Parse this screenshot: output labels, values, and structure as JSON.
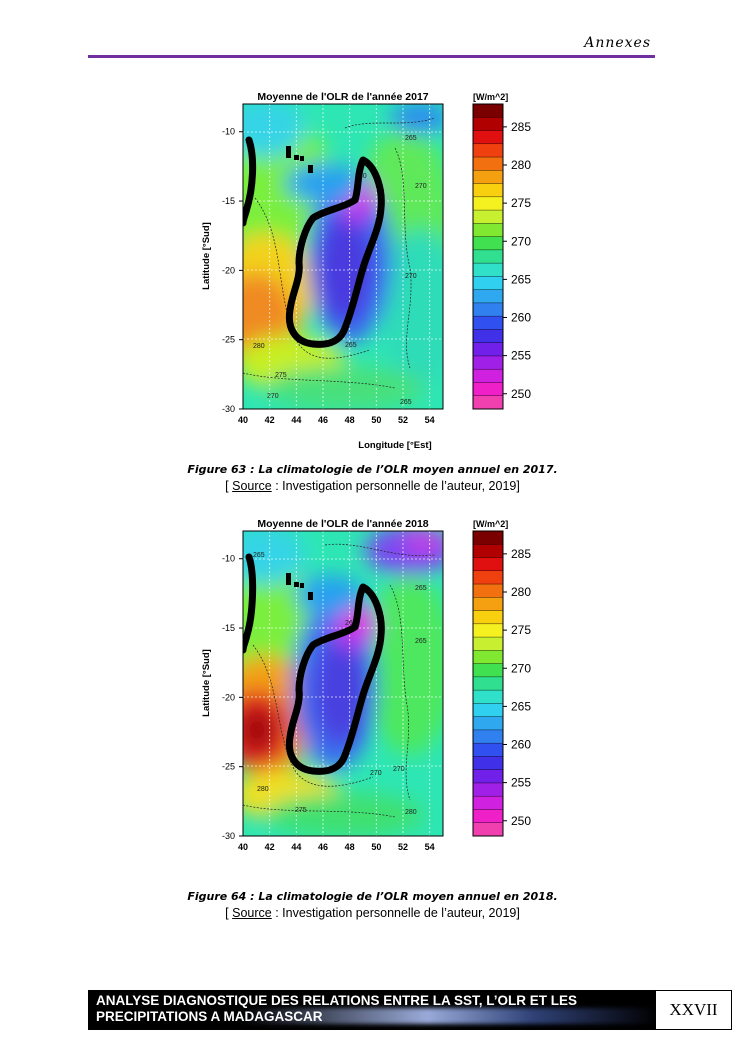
{
  "header": {
    "title": "Annexes"
  },
  "figures": [
    {
      "panel_title": "Moyenne de l'OLR de l'année 2017",
      "unit": "[W/m^2]",
      "ylabel": "Latitude [°Sud]",
      "xlabel": "Longitude [°Est]",
      "caption": "Figure 63 : La climatologie de l’OLR moyen annuel en 2017.",
      "source_label": "Source",
      "source_text": " : Investigation personnelle de l’auteur, 2019]",
      "source_open": "[ ",
      "contour_labels": [
        "265",
        "270",
        "270",
        "260",
        "280",
        "265",
        "275",
        "270",
        "265"
      ]
    },
    {
      "panel_title": "Moyenne de l'OLR de l'année 2018",
      "unit": "[W/m^2]",
      "ylabel": "Latitude [°Sud]",
      "xlabel": "",
      "caption": "Figure 64 : La climatologie de l’OLR moyen annuel en 2018.",
      "source_label": "Source",
      "source_text": " : Investigation personnelle de l’auteur, 2019]",
      "source_open": "[ ",
      "contour_labels": [
        "265",
        "260",
        "265",
        "265",
        "270",
        "270",
        "280",
        "275",
        "280"
      ]
    }
  ],
  "chart_data": [
    {
      "type": "heatmap",
      "title": "Moyenne de l'OLR de l'année 2017",
      "xlabel": "Longitude [°Est]",
      "ylabel": "Latitude [°Sud]",
      "x_ticks": [
        "40",
        "42",
        "44",
        "46",
        "48",
        "50",
        "52",
        "54"
      ],
      "y_ticks": [
        "-10",
        "-15",
        "-20",
        "-25",
        "-30"
      ],
      "xlim": [
        40,
        55
      ],
      "ylim": [
        -30,
        -8
      ],
      "colorbar_unit": "[W/m^2]",
      "colorbar_ticks": [
        "285",
        "280",
        "275",
        "270",
        "265",
        "260",
        "255",
        "250"
      ],
      "colorbar_range": [
        248,
        288
      ],
      "grid": true
    },
    {
      "type": "heatmap",
      "title": "Moyenne de l'OLR de l'année 2018",
      "xlabel": "",
      "ylabel": "Latitude [°Sud]",
      "x_ticks": [
        "40",
        "42",
        "44",
        "46",
        "48",
        "50",
        "52",
        "54"
      ],
      "y_ticks": [
        "-10",
        "-15",
        "-20",
        "-25",
        "-30"
      ],
      "xlim": [
        40,
        55
      ],
      "ylim": [
        -30,
        -8
      ],
      "colorbar_unit": "[W/m^2]",
      "colorbar_ticks": [
        "285",
        "280",
        "275",
        "270",
        "265",
        "260",
        "255",
        "250"
      ],
      "colorbar_range": [
        248,
        288
      ],
      "grid": true
    }
  ],
  "footer": {
    "line1": "ANALYSE DIAGNOSTIQUE DES RELATIONS ENTRE LA SST, L’OLR ET LES",
    "line2": "PRECIPITATIONS A MADAGASCAR",
    "page_number": "XXVII"
  }
}
